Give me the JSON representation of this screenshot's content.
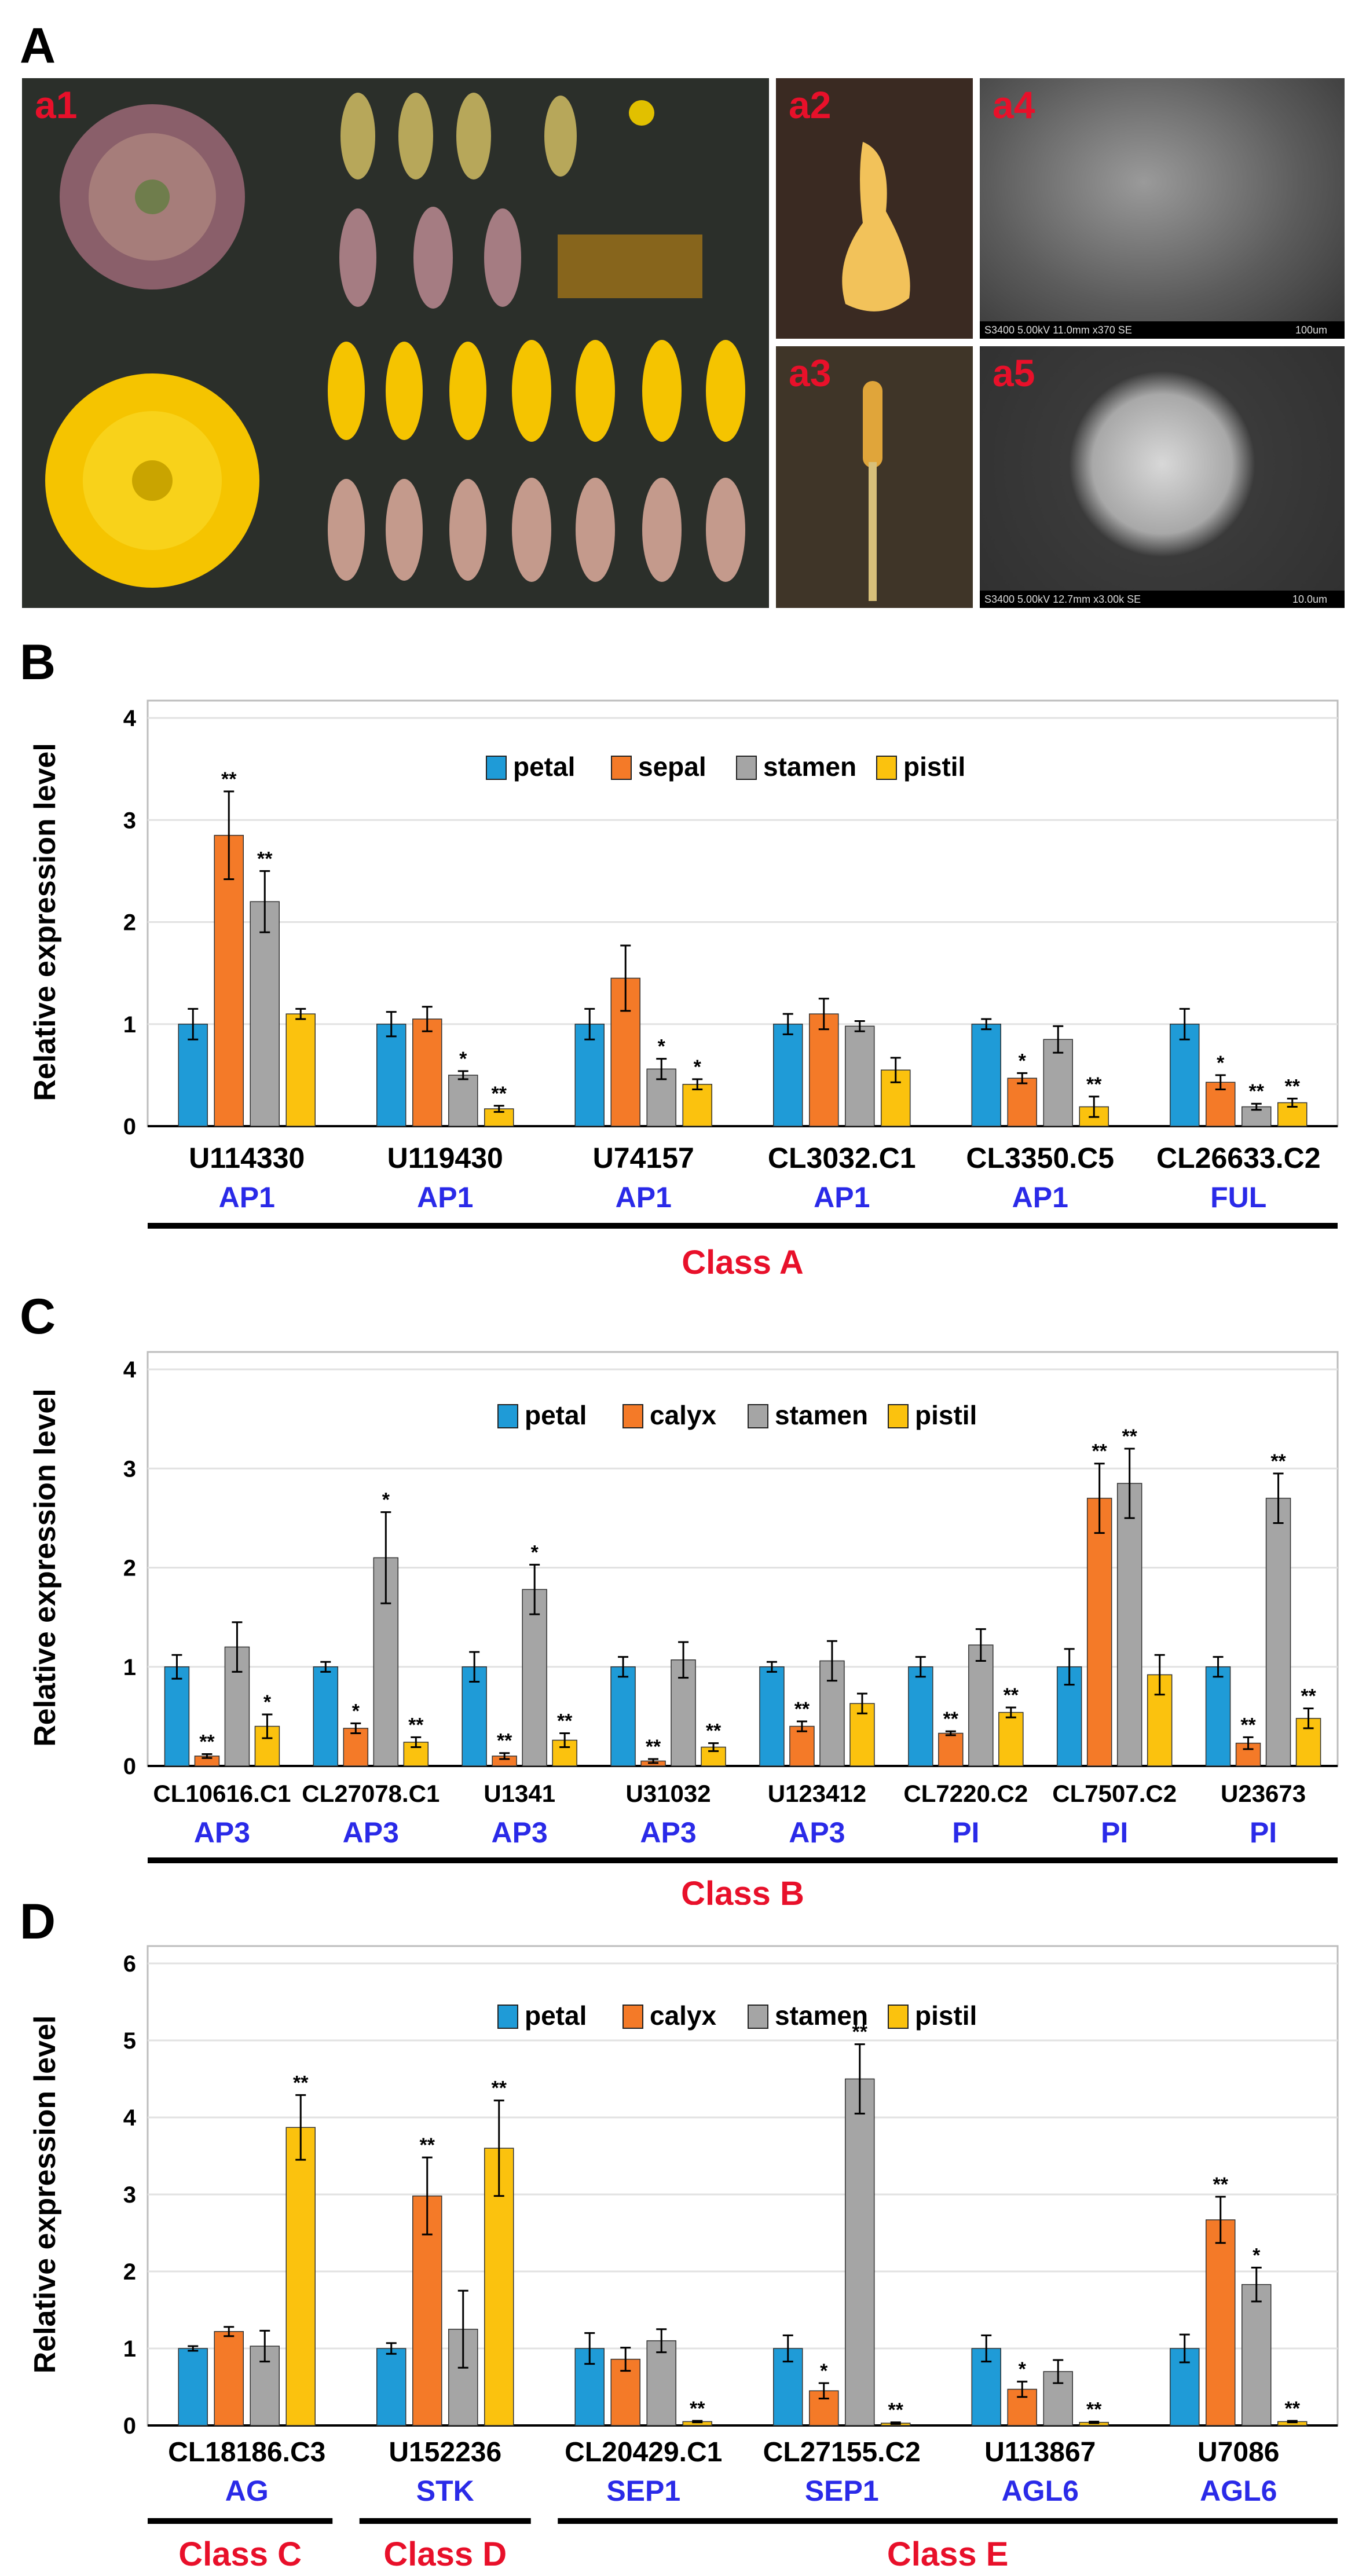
{
  "panels": {
    "a": "A",
    "b": "B",
    "c": "C",
    "d": "D"
  },
  "photos": {
    "a1": "a1",
    "a2": "a2",
    "a3": "a3",
    "a4": "a4",
    "a5": "a5",
    "a4_scale": "S3400 5.00kV 11.0mm x370 SE",
    "a4_bar": "100um",
    "a5_scale": "S3400 5.00kV 12.7mm x3.00k SE",
    "a5_bar": "10.0um"
  },
  "colors": {
    "petal": "#1f9bd7",
    "sepal": "#f47a28",
    "stamen": "#a5a5a5",
    "pistil": "#fbc20e",
    "gene_family": "#2a2ae8",
    "class_label": "#e8102a"
  },
  "chart_data": [
    {
      "type": "bar",
      "ylabel": "Relative expression level",
      "ylim": [
        0,
        4
      ],
      "yticks": [
        0,
        1,
        2,
        3,
        4
      ],
      "legend": [
        "petal",
        "sepal",
        "stamen",
        "pistil"
      ],
      "categories": [
        "U114330",
        "U119430",
        "U74157",
        "CL3032.C1",
        "CL3350.C5",
        "CL26633.C2"
      ],
      "families": [
        "AP1",
        "AP1",
        "AP1",
        "AP1",
        "AP1",
        "FUL"
      ],
      "groups": [
        {
          "label": "Class A",
          "span": [
            0,
            5
          ]
        }
      ],
      "series": [
        {
          "name": "petal",
          "values": [
            1.0,
            1.0,
            1.0,
            1.0,
            1.0,
            1.0
          ],
          "errors": [
            0.15,
            0.12,
            0.15,
            0.1,
            0.05,
            0.15
          ],
          "sig": [
            "",
            "",
            "",
            "",
            "",
            ""
          ]
        },
        {
          "name": "sepal",
          "values": [
            2.85,
            1.05,
            1.45,
            1.1,
            0.47,
            0.43
          ],
          "errors": [
            0.43,
            0.12,
            0.32,
            0.15,
            0.05,
            0.07
          ],
          "sig": [
            "**",
            "",
            "",
            "",
            "*",
            "*"
          ]
        },
        {
          "name": "stamen",
          "values": [
            2.2,
            0.5,
            0.56,
            0.98,
            0.85,
            0.19
          ],
          "errors": [
            0.3,
            0.04,
            0.1,
            0.05,
            0.13,
            0.03
          ],
          "sig": [
            "**",
            "*",
            "*",
            "",
            "",
            "**"
          ]
        },
        {
          "name": "pistil",
          "values": [
            1.1,
            0.17,
            0.41,
            0.55,
            0.19,
            0.23
          ],
          "errors": [
            0.05,
            0.03,
            0.05,
            0.12,
            0.1,
            0.04
          ],
          "sig": [
            "",
            "**",
            "*",
            "",
            "**",
            "**"
          ]
        }
      ]
    },
    {
      "type": "bar",
      "ylabel": "Relative expression level",
      "ylim": [
        0,
        4
      ],
      "yticks": [
        0,
        1,
        2,
        3,
        4
      ],
      "legend": [
        "petal",
        "calyx",
        "stamen",
        "pistil"
      ],
      "categories": [
        "CL10616.C1",
        "CL27078.C1",
        "U1341",
        "U31032",
        "U123412",
        "CL7220.C2",
        "CL7507.C2",
        "U23673"
      ],
      "families": [
        "AP3",
        "AP3",
        "AP3",
        "AP3",
        "AP3",
        "PI",
        "PI",
        "PI"
      ],
      "groups": [
        {
          "label": "Class B",
          "span": [
            0,
            7
          ]
        }
      ],
      "series": [
        {
          "name": "petal",
          "values": [
            1.0,
            1.0,
            1.0,
            1.0,
            1.0,
            1.0,
            1.0,
            1.0
          ],
          "errors": [
            0.12,
            0.05,
            0.15,
            0.1,
            0.05,
            0.1,
            0.18,
            0.1
          ],
          "sig": [
            "",
            "",
            "",
            "",
            "",
            "",
            "",
            ""
          ]
        },
        {
          "name": "calyx",
          "values": [
            0.1,
            0.38,
            0.1,
            0.05,
            0.4,
            0.33,
            2.7,
            0.23
          ],
          "errors": [
            0.02,
            0.05,
            0.03,
            0.02,
            0.05,
            0.02,
            0.35,
            0.06
          ],
          "sig": [
            "**",
            "*",
            "**",
            "**",
            "**",
            "**",
            "**",
            "**"
          ]
        },
        {
          "name": "stamen",
          "values": [
            1.2,
            2.1,
            1.78,
            1.07,
            1.06,
            1.22,
            2.85,
            2.7
          ],
          "errors": [
            0.25,
            0.46,
            0.25,
            0.18,
            0.2,
            0.16,
            0.35,
            0.25
          ],
          "sig": [
            "",
            "*",
            "*",
            "",
            "",
            "",
            "**",
            "**"
          ]
        },
        {
          "name": "pistil",
          "values": [
            0.4,
            0.24,
            0.26,
            0.19,
            0.63,
            0.54,
            0.92,
            0.48
          ],
          "errors": [
            0.12,
            0.05,
            0.07,
            0.04,
            0.1,
            0.05,
            0.2,
            0.1
          ],
          "sig": [
            "*",
            "**",
            "**",
            "**",
            "",
            "**",
            "",
            "**"
          ]
        }
      ]
    },
    {
      "type": "bar",
      "ylabel": "Relative expression level",
      "ylim": [
        0,
        6
      ],
      "yticks": [
        0,
        1,
        2,
        3,
        4,
        5,
        6
      ],
      "legend": [
        "petal",
        "calyx",
        "stamen",
        "pistil"
      ],
      "categories": [
        "CL18186.C3",
        "U152236",
        "CL20429.C1",
        "CL27155.C2",
        "U113867",
        "U7086"
      ],
      "families": [
        "AG",
        "STK",
        "SEP1",
        "SEP1",
        "AGL6",
        "AGL6"
      ],
      "groups": [
        {
          "label": "Class C",
          "span": [
            0,
            0
          ]
        },
        {
          "label": "Class D",
          "span": [
            1,
            1
          ]
        },
        {
          "label": "Class E",
          "span": [
            2,
            5
          ]
        }
      ],
      "series": [
        {
          "name": "petal",
          "values": [
            1.0,
            1.0,
            1.0,
            1.0,
            1.0,
            1.0
          ],
          "errors": [
            0.03,
            0.07,
            0.2,
            0.17,
            0.17,
            0.18
          ],
          "sig": [
            "",
            "",
            "",
            "",
            "",
            ""
          ]
        },
        {
          "name": "calyx",
          "values": [
            1.22,
            2.98,
            0.86,
            0.45,
            0.47,
            2.67
          ],
          "errors": [
            0.06,
            0.5,
            0.15,
            0.1,
            0.1,
            0.3
          ],
          "sig": [
            "",
            "**",
            "",
            "*",
            "*",
            "**"
          ]
        },
        {
          "name": "stamen",
          "values": [
            1.03,
            1.25,
            1.1,
            4.5,
            0.7,
            1.83
          ],
          "errors": [
            0.2,
            0.5,
            0.15,
            0.45,
            0.15,
            0.22
          ],
          "sig": [
            "",
            "",
            "",
            "**",
            "",
            "*"
          ]
        },
        {
          "name": "pistil",
          "values": [
            3.87,
            3.6,
            0.05,
            0.03,
            0.04,
            0.05
          ],
          "errors": [
            0.42,
            0.62,
            0.01,
            0.01,
            0.01,
            0.01
          ],
          "sig": [
            "**",
            "**",
            "**",
            "**",
            "**",
            "**"
          ]
        }
      ]
    }
  ]
}
